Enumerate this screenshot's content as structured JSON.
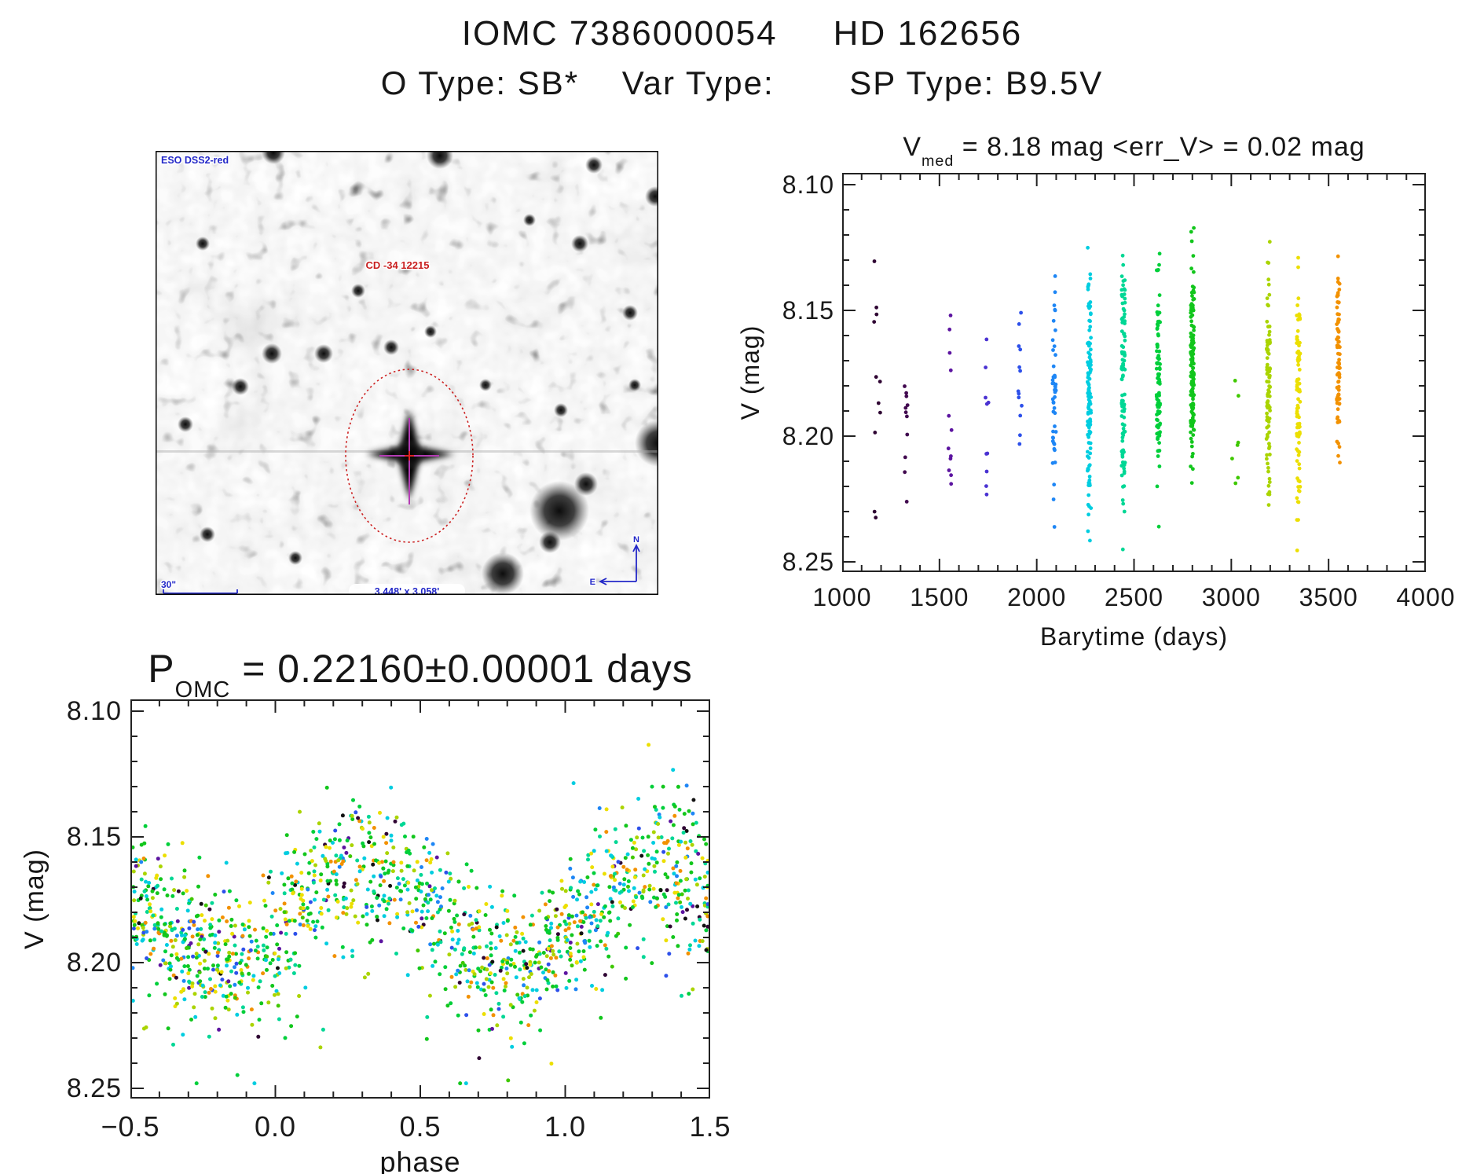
{
  "page": {
    "title_line1": "IOMC 7386000054     HD 162656",
    "title_line2": "O Type: SB*    Var Type:       SP Type: B9.5V"
  },
  "finder": {
    "survey_label": "ESO DSS2-red",
    "target_label": "CD -34 12215",
    "scale_label": "30\"",
    "fov_label": "3.448' x 3.058'",
    "compass_north": "N",
    "compass_east": "E",
    "annotation_color": "#2328c8",
    "target_label_color": "#c81e1e",
    "target_circle_color": "#cc2020",
    "crosshair_color": "#b43cb4"
  },
  "chart_data": [
    {
      "type": "scatter",
      "title_main": "V",
      "title_sub": "med",
      "title_rest": " = 8.18 mag <err_V> = 0.02 mag",
      "xlabel": "Barytime (days)",
      "ylabel": "V (mag)",
      "xlim": [
        1000,
        4000
      ],
      "ylim": [
        8.1,
        8.25
      ],
      "y_axis_direction": "magnitude increases downward",
      "xtick_values": [
        1000,
        1500,
        2000,
        2500,
        3000,
        3500,
        4000
      ],
      "xtick_labels": [
        "1000",
        "1500",
        "2000",
        "2500",
        "3000",
        "3500",
        "4000"
      ],
      "ytick_values": [
        8.1,
        8.15,
        8.2,
        8.25
      ],
      "ytick_labels": [
        "8.10",
        "8.15",
        "8.20",
        "8.25"
      ],
      "x_minor_step": 100,
      "y_minor_step": 0.01,
      "grid": false,
      "legend": "none - points colored by observation epoch (rainbow: early=dark purple, late=orange)",
      "clusters": [
        {
          "barytime": 1180,
          "t_jitter": 16,
          "n": 11,
          "color": "#2f0533",
          "mag_mean": 8.19,
          "mag_sigma": 0.04,
          "mag_min": 8.128,
          "mag_max": 8.247
        },
        {
          "barytime": 1330,
          "t_jitter": 10,
          "n": 11,
          "color": "#41094f",
          "mag_mean": 8.198,
          "mag_sigma": 0.028,
          "mag_min": 8.15,
          "mag_max": 8.233
        },
        {
          "barytime": 1555,
          "t_jitter": 10,
          "n": 12,
          "color": "#5c14a0",
          "mag_mean": 8.192,
          "mag_sigma": 0.027,
          "mag_min": 8.148,
          "mag_max": 8.236
        },
        {
          "barytime": 1745,
          "t_jitter": 10,
          "n": 10,
          "color": "#4a32d2",
          "mag_mean": 8.191,
          "mag_sigma": 0.024,
          "mag_min": 8.156,
          "mag_max": 8.228
        },
        {
          "barytime": 1915,
          "t_jitter": 10,
          "n": 13,
          "color": "#2d50ea",
          "mag_mean": 8.189,
          "mag_sigma": 0.022,
          "mag_min": 8.15,
          "mag_max": 8.224
        },
        {
          "barytime": 2090,
          "t_jitter": 9,
          "n": 48,
          "color": "#1e86f5",
          "mag_mean": 8.185,
          "mag_sigma": 0.024,
          "mag_min": 8.13,
          "mag_max": 8.243
        },
        {
          "barytime": 2270,
          "t_jitter": 9,
          "n": 115,
          "color": "#00cde0",
          "mag_mean": 8.179,
          "mag_sigma": 0.025,
          "mag_min": 8.114,
          "mag_max": 8.243
        },
        {
          "barytime": 2445,
          "t_jitter": 9,
          "n": 100,
          "color": "#00d795",
          "mag_mean": 8.18,
          "mag_sigma": 0.025,
          "mag_min": 8.117,
          "mag_max": 8.246
        },
        {
          "barytime": 2625,
          "t_jitter": 9,
          "n": 95,
          "color": "#00cf3a",
          "mag_mean": 8.177,
          "mag_sigma": 0.024,
          "mag_min": 8.119,
          "mag_max": 8.238
        },
        {
          "barytime": 2800,
          "t_jitter": 9,
          "n": 140,
          "color": "#12c61c",
          "mag_mean": 8.175,
          "mag_sigma": 0.023,
          "mag_min": 8.114,
          "mag_max": 8.238
        },
        {
          "barytime": 3015,
          "t_jitter": 26,
          "n": 7,
          "color": "#3fc800",
          "mag_mean": 8.19,
          "mag_sigma": 0.026,
          "mag_min": 8.148,
          "mag_max": 8.227
        },
        {
          "barytime": 3190,
          "t_jitter": 9,
          "n": 92,
          "color": "#aad400",
          "mag_mean": 8.179,
          "mag_sigma": 0.024,
          "mag_min": 8.12,
          "mag_max": 8.232
        },
        {
          "barytime": 3345,
          "t_jitter": 9,
          "n": 88,
          "color": "#ecdf00",
          "mag_mean": 8.186,
          "mag_sigma": 0.026,
          "mag_min": 8.128,
          "mag_max": 8.25
        },
        {
          "barytime": 3550,
          "t_jitter": 8,
          "n": 78,
          "color": "#f29100",
          "mag_mean": 8.172,
          "mag_sigma": 0.02,
          "mag_min": 8.118,
          "mag_max": 8.212
        }
      ]
    },
    {
      "type": "scatter",
      "title_main": "P",
      "title_sub": "OMC",
      "title_rest": " = 0.22160±0.00001 days",
      "xlabel": "phase",
      "ylabel": "V (mag)",
      "xlim": [
        -0.5,
        1.5
      ],
      "ylim": [
        8.1,
        8.25
      ],
      "y_axis_direction": "magnitude increases downward",
      "xtick_values": [
        -0.5,
        0.0,
        0.5,
        1.0,
        1.5
      ],
      "xtick_labels": [
        "−0.5",
        "0.0",
        "0.5",
        "1.0",
        "1.5"
      ],
      "ytick_values": [
        8.1,
        8.15,
        8.2,
        8.25
      ],
      "ytick_labels": [
        "8.10",
        "8.15",
        "8.20",
        "8.25"
      ],
      "x_minor_step": 0.1,
      "y_minor_step": 0.01,
      "grid": false,
      "legend": "none - same epoch rainbow coloring as barytime plot, phase-folded",
      "model": {
        "n_points": 1450,
        "mag_mean": 8.181,
        "amplitude": 0.019,
        "phase_of_maximum_brightness": 0.32,
        "scatter_sigma": 0.0145,
        "mag_clip": [
          8.113,
          8.248
        ],
        "faint_outlier_fraction": 0.035
      },
      "palette": [
        {
          "color": "#12c61c",
          "weight": 0.17
        },
        {
          "color": "#00cf3a",
          "weight": 0.12
        },
        {
          "color": "#00d795",
          "weight": 0.12
        },
        {
          "color": "#00cde0",
          "weight": 0.13
        },
        {
          "color": "#1e86f5",
          "weight": 0.05
        },
        {
          "color": "#2d50ea",
          "weight": 0.04
        },
        {
          "color": "#aad400",
          "weight": 0.1
        },
        {
          "color": "#ecdf00",
          "weight": 0.11
        },
        {
          "color": "#f29100",
          "weight": 0.08
        },
        {
          "color": "#5c14a0",
          "weight": 0.02
        },
        {
          "color": "#2f0533",
          "weight": 0.02
        },
        {
          "color": "#111111",
          "weight": 0.02
        },
        {
          "color": "#3fc800",
          "weight": 0.02
        }
      ]
    }
  ]
}
